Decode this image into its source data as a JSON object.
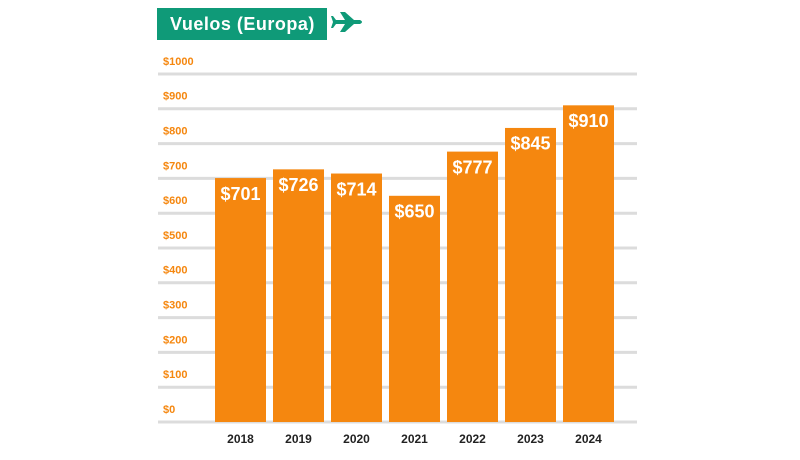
{
  "chart_data": {
    "type": "bar",
    "title": "Vuelos (Europa)",
    "categories": [
      "2018",
      "2019",
      "2020",
      "2021",
      "2022",
      "2023",
      "2024"
    ],
    "values": [
      701,
      726,
      714,
      650,
      777,
      845,
      910
    ],
    "value_labels": [
      "$701",
      "$726",
      "$714",
      "$650",
      "$777",
      "$845",
      "$910"
    ],
    "color": "#f5870f",
    "ylim": [
      0,
      1000
    ],
    "yticks": [
      {
        "value": 0,
        "label": "$0"
      },
      {
        "value": 100,
        "label": "$100"
      },
      {
        "value": 200,
        "label": "$200"
      },
      {
        "value": 300,
        "label": "$300"
      },
      {
        "value": 400,
        "label": "$400"
      },
      {
        "value": 500,
        "label": "$500"
      },
      {
        "value": 600,
        "label": "$600"
      },
      {
        "value": 700,
        "label": "$700"
      },
      {
        "value": 800,
        "label": "$800"
      },
      {
        "value": 900,
        "label": "$900"
      },
      {
        "value": 1000,
        "label": "$1000"
      }
    ],
    "grid": true
  }
}
